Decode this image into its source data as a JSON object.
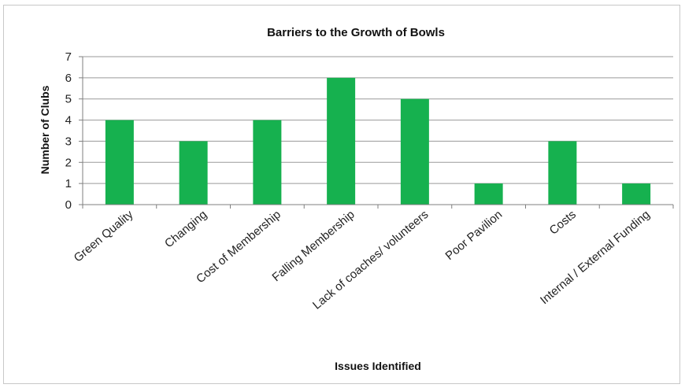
{
  "chart_data": {
    "type": "bar",
    "title": "Barriers to the Growth of Bowls",
    "xlabel": "Issues Identified",
    "ylabel": "Number of Clubs",
    "categories": [
      "Green Quality",
      "Changing",
      "Cost of Membership",
      "Falling Membership",
      "Lack of coaches/ volunteers",
      "Poor Pavilion",
      "Costs",
      "Internal / External Funding"
    ],
    "values": [
      4,
      3,
      4,
      6,
      5,
      1,
      3,
      1
    ],
    "ylim": [
      0,
      7
    ],
    "yticks": [
      "0",
      "1",
      "2",
      "3",
      "4",
      "5",
      "6",
      "7"
    ],
    "grid": true,
    "legend": "none",
    "colors": {
      "bar": "#16b14f",
      "grid": "#9a9a9a",
      "axis": "#7f7f7f"
    }
  }
}
